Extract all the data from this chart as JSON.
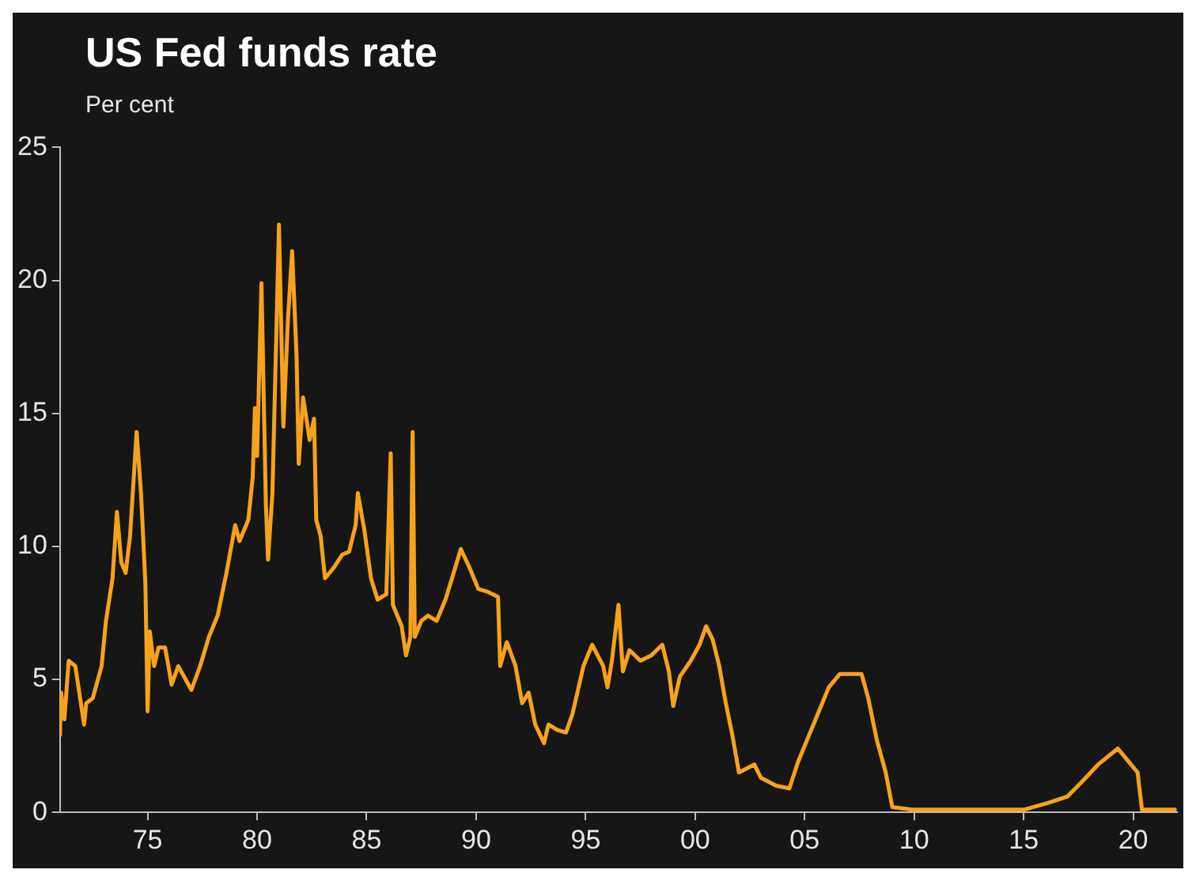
{
  "chart_data": {
    "type": "line",
    "title": "US Fed funds rate",
    "ylabel": "Per cent",
    "x": [
      1971.0,
      1971.05,
      1971.2,
      1971.4,
      1971.7,
      1972.1,
      1972.2,
      1972.5,
      1972.9,
      1973.1,
      1973.4,
      1973.6,
      1973.8,
      1974.0,
      1974.2,
      1974.5,
      1974.7,
      1974.9,
      1975.0,
      1975.1,
      1975.3,
      1975.5,
      1975.8,
      1976.1,
      1976.4,
      1976.6,
      1977.0,
      1977.4,
      1977.8,
      1978.2,
      1978.6,
      1979.0,
      1979.2,
      1979.6,
      1979.8,
      1979.9,
      1980.0,
      1980.2,
      1980.4,
      1980.5,
      1980.7,
      1981.0,
      1981.2,
      1981.4,
      1981.6,
      1981.8,
      1981.9,
      1982.1,
      1982.4,
      1982.6,
      1982.7,
      1982.9,
      1983.1,
      1983.5,
      1983.9,
      1984.2,
      1984.5,
      1984.6,
      1984.9,
      1985.2,
      1985.5,
      1985.9,
      1986.1,
      1986.2,
      1986.6,
      1986.8,
      1987.0,
      1987.1,
      1987.2,
      1987.5,
      1987.8,
      1988.2,
      1988.6,
      1988.9,
      1989.3,
      1989.7,
      1990.1,
      1990.5,
      1991.0,
      1991.1,
      1991.4,
      1991.8,
      1992.1,
      1992.4,
      1992.7,
      1993.1,
      1993.3,
      1993.7,
      1994.1,
      1994.4,
      1994.9,
      1995.3,
      1995.8,
      1996.0,
      1996.2,
      1996.5,
      1996.7,
      1997.0,
      1997.5,
      1998.0,
      1998.5,
      1998.8,
      1999.0,
      1999.3,
      1999.8,
      2000.2,
      2000.5,
      2000.8,
      2001.1,
      2001.4,
      2001.7,
      2002.0,
      2002.7,
      2003.0,
      2003.7,
      2004.3,
      2004.7,
      2005.5,
      2006.1,
      2006.6,
      2007.6,
      2007.9,
      2008.3,
      2008.7,
      2009.0,
      2009.9,
      2015.0,
      2016.1,
      2017.0,
      2017.6,
      2018.4,
      2019.3,
      2019.8,
      2020.2,
      2020.4,
      2021.9
    ],
    "series": [
      {
        "color": "#f7a21b",
        "values": [
          2.9,
          4.5,
          3.5,
          5.7,
          5.5,
          3.3,
          4.1,
          4.3,
          5.5,
          7.2,
          8.8,
          11.3,
          9.4,
          9.0,
          10.4,
          14.3,
          12.0,
          8.6,
          3.8,
          6.8,
          5.5,
          6.2,
          6.2,
          4.8,
          5.5,
          5.2,
          4.6,
          5.5,
          6.6,
          7.4,
          9.0,
          10.8,
          10.2,
          11.0,
          12.6,
          15.2,
          13.4,
          19.9,
          11.6,
          9.5,
          12.0,
          22.1,
          14.5,
          18.4,
          21.1,
          17.2,
          13.1,
          15.6,
          14.0,
          14.8,
          11.0,
          10.4,
          8.8,
          9.2,
          9.7,
          9.8,
          10.8,
          12.0,
          10.6,
          8.8,
          8.0,
          8.2,
          13.5,
          7.8,
          7.0,
          5.9,
          6.6,
          14.3,
          6.6,
          7.2,
          7.4,
          7.2,
          8.0,
          8.8,
          9.9,
          9.2,
          8.4,
          8.3,
          8.1,
          5.5,
          6.4,
          5.5,
          4.1,
          4.5,
          3.3,
          2.6,
          3.3,
          3.1,
          3.0,
          3.7,
          5.5,
          6.3,
          5.5,
          4.7,
          5.7,
          7.8,
          5.3,
          6.1,
          5.7,
          5.9,
          6.3,
          5.3,
          4.0,
          5.1,
          5.7,
          6.3,
          7.0,
          6.5,
          5.5,
          4.1,
          2.9,
          1.5,
          1.8,
          1.3,
          1.0,
          0.9,
          1.9,
          3.5,
          4.7,
          5.2,
          5.2,
          4.3,
          2.7,
          1.5,
          0.2,
          0.1,
          0.1,
          0.35,
          0.6,
          1.1,
          1.8,
          2.4,
          1.9,
          1.5,
          0.1,
          0.1
        ]
      }
    ],
    "xlim": [
      1971.0,
      2022.0
    ],
    "xticks": [
      {
        "value": 1975,
        "label": "75"
      },
      {
        "value": 1980,
        "label": "80"
      },
      {
        "value": 1985,
        "label": "85"
      },
      {
        "value": 1990,
        "label": "90"
      },
      {
        "value": 1995,
        "label": "95"
      },
      {
        "value": 2000,
        "label": "00"
      },
      {
        "value": 2005,
        "label": "05"
      },
      {
        "value": 2010,
        "label": "10"
      },
      {
        "value": 2015,
        "label": "15"
      },
      {
        "value": 2020,
        "label": "20"
      }
    ],
    "ylim": [
      0,
      25
    ],
    "yticks": [
      0,
      5,
      10,
      15,
      20,
      25
    ],
    "grid": false,
    "marker": "none",
    "line_style": "solid"
  }
}
